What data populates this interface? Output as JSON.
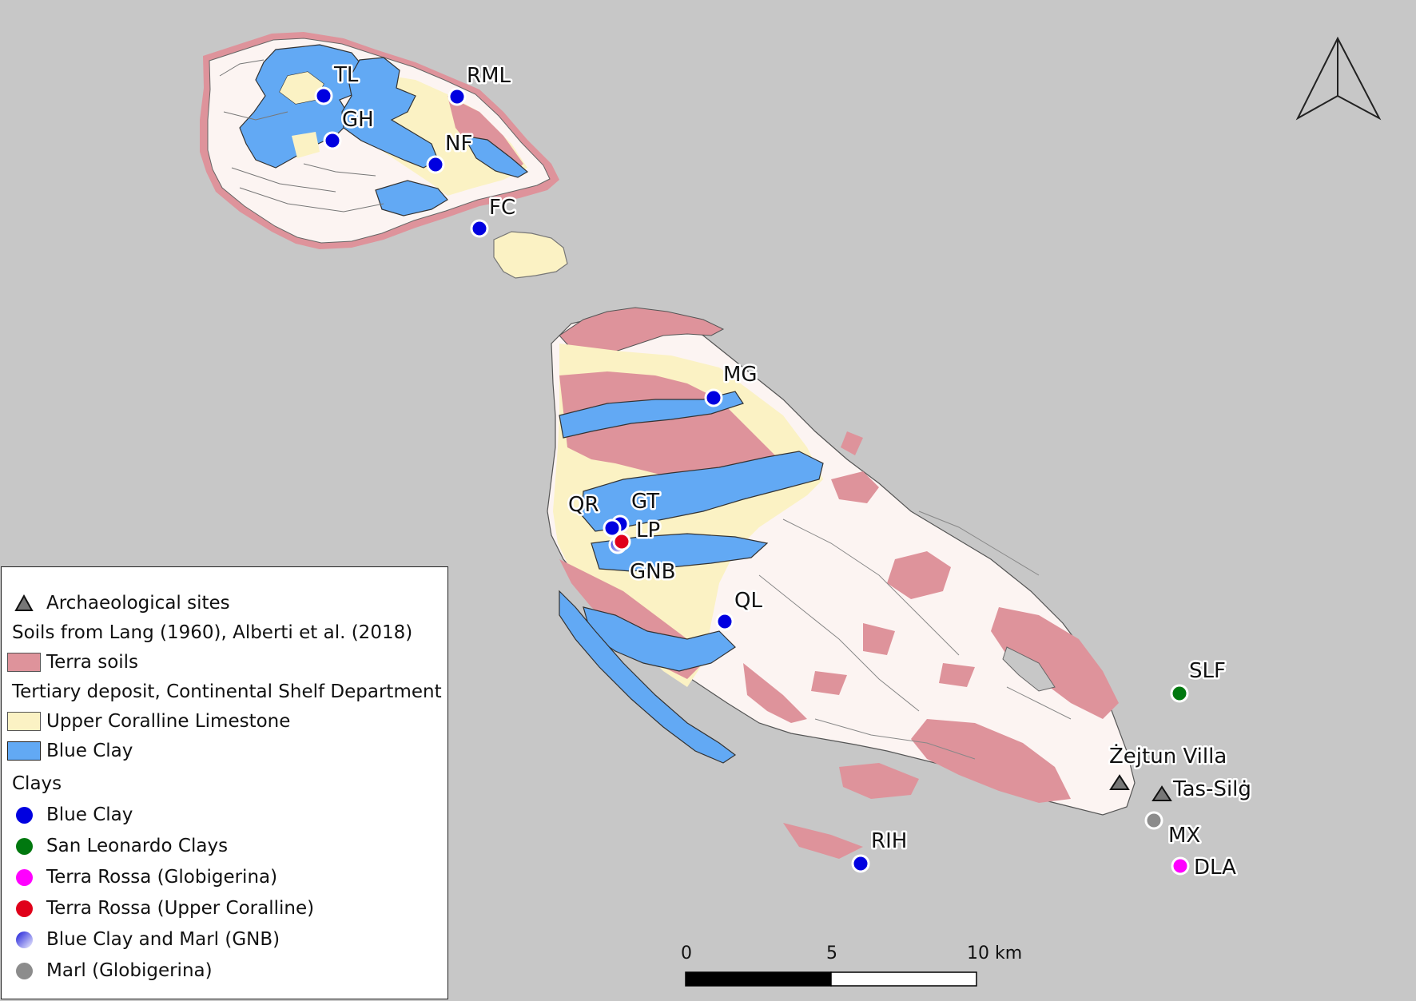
{
  "map": {
    "colors": {
      "sea": "#c7c7c7",
      "land": "#fcf4f2",
      "terra_soils": "#de939b",
      "upper_coralline_limestone": "#fbf2c4",
      "blue_clay": "#62a9f4",
      "blue_clay_point": "#0000e0",
      "san_leonardo_point": "#00780f",
      "terra_rossa_glob_point": "#ff00ff",
      "terra_rossa_upper_point": "#e0001a",
      "marl_point": "#8c8c8c",
      "archaeological_site": "#777777"
    },
    "islands": [
      "Gozo",
      "Comino",
      "Malta"
    ],
    "sites": [
      {
        "code": "TL",
        "type": "Blue Clay"
      },
      {
        "code": "RML",
        "type": "Blue Clay"
      },
      {
        "code": "GH",
        "type": "Blue Clay"
      },
      {
        "code": "NF",
        "type": "Blue Clay"
      },
      {
        "code": "FC",
        "type": "Blue Clay"
      },
      {
        "code": "MG",
        "type": "Blue Clay"
      },
      {
        "code": "QR",
        "type": "Blue Clay"
      },
      {
        "code": "GT",
        "type": "Blue Clay"
      },
      {
        "code": "LP",
        "type": "Terra Rossa (Upper Coralline)"
      },
      {
        "code": "GNB",
        "type": "Blue Clay and Marl (GNB)"
      },
      {
        "code": "QL",
        "type": "Blue Clay"
      },
      {
        "code": "SLF",
        "type": "San Leonardo Clays"
      },
      {
        "code": "Żejtun Villa",
        "type": "Archaeological sites"
      },
      {
        "code": "Tas-Silġ",
        "type": "Archaeological sites"
      },
      {
        "code": "MX",
        "type": "Marl (Globigerina)"
      },
      {
        "code": "DLA",
        "type": "Terra Rossa (Globigerina)"
      },
      {
        "code": "RIH",
        "type": "Blue Clay"
      }
    ],
    "north_arrow": "north-arrow-icon"
  },
  "scale_bar": {
    "labels": [
      "0",
      "5",
      "10 km"
    ]
  },
  "legend": {
    "archaeological": "Archaeological sites",
    "soils_heading": "Soils from Lang (1960), Alberti et al. (2018)",
    "terra_soils": "Terra soils",
    "tertiary_heading": "Tertiary deposit, Continental Shelf Department",
    "upper_coralline": "Upper Coralline Limestone",
    "blue_clay_unit": "Blue Clay",
    "clays_heading": "Clays",
    "clays": [
      "Blue Clay",
      "San Leonardo Clays",
      "Terra Rossa (Globigerina)",
      "Terra Rossa (Upper Coralline)",
      "Blue Clay and Marl (GNB)",
      "Marl (Globigerina)"
    ]
  }
}
